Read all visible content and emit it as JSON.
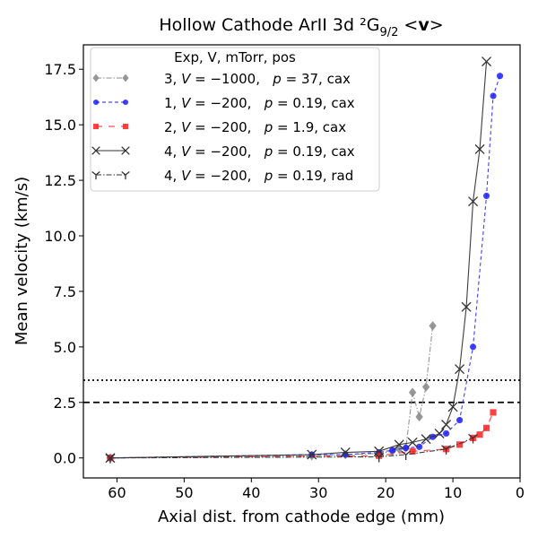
{
  "chart_data": {
    "type": "line",
    "title": "Hollow Cathode ArII 3d ²G",
    "title_subscript": "9/2",
    "title_suffix": " <",
    "title_bold": "v",
    "title_end": ">",
    "xlabel": "Axial dist. from cathode edge (mm)",
    "ylabel": "Mean velocity (km/s)",
    "xlim": [
      65,
      0
    ],
    "ylim": [
      -0.9,
      18.6
    ],
    "x_ticks": [
      60,
      50,
      40,
      30,
      20,
      10,
      0
    ],
    "x_tick_labels": [
      "60",
      "50",
      "40",
      "30",
      "20",
      "10",
      "0"
    ],
    "y_ticks": [
      0.0,
      2.5,
      5.0,
      7.5,
      10.0,
      12.5,
      15.0,
      17.5
    ],
    "y_tick_labels": [
      "0.0",
      "2.5",
      "5.0",
      "7.5",
      "10.0",
      "12.5",
      "15.0",
      "17.5"
    ],
    "grid": false,
    "hlines": [
      {
        "y": 3.5,
        "style": "dotted",
        "color": "#000000"
      },
      {
        "y": 2.5,
        "style": "dashed",
        "color": "#000000"
      }
    ],
    "legend": {
      "placement": "top-left",
      "title": "Exp, V, mTorr, pos",
      "entries": [
        {
          "exp": "3",
          "v": "−1000,",
          "p": "37,",
          "pos": "cax"
        },
        {
          "exp": "1",
          "v": "−200,",
          "p": "0.19,",
          "pos": "cax"
        },
        {
          "exp": "2",
          "v": "−200,",
          "p": "1.9,",
          "pos": "cax"
        },
        {
          "exp": "4",
          "v": "−200,",
          "p": "0.19,",
          "pos": "cax"
        },
        {
          "exp": "4",
          "v": "−200,",
          "p": "0.19,",
          "pos": "rad"
        }
      ]
    },
    "series": [
      {
        "color": "#8c8c8c",
        "marker": "diamond",
        "line": "dashdot",
        "alpha": 0.9,
        "x": [
          61,
          31,
          26,
          21,
          19,
          18,
          17,
          16,
          15,
          14,
          13
        ],
        "y": [
          0.0,
          0.1,
          0.15,
          0.2,
          0.3,
          0.4,
          0.45,
          2.95,
          1.85,
          3.2,
          5.95
        ]
      },
      {
        "color": "#1f1fff",
        "marker": "circle",
        "line": "dashed",
        "alpha": 0.85,
        "x": [
          61,
          31,
          26,
          21,
          19,
          17,
          15,
          13,
          11,
          9,
          7,
          5,
          4,
          3
        ],
        "y": [
          0.0,
          0.15,
          0.15,
          0.25,
          0.35,
          0.45,
          0.5,
          0.95,
          1.1,
          1.7,
          5.0,
          11.8,
          16.3,
          17.2
        ]
      },
      {
        "color": "#ff2020",
        "marker": "square",
        "line": "longdash",
        "alpha": 0.85,
        "x": [
          61,
          21,
          16,
          11,
          9,
          7,
          6,
          5,
          4
        ],
        "y": [
          0.0,
          0.1,
          0.3,
          0.4,
          0.6,
          0.9,
          1.05,
          1.35,
          2.05
        ]
      },
      {
        "color": "#333333",
        "marker": "x",
        "line": "solid",
        "alpha": 0.95,
        "x": [
          61,
          31,
          26,
          21,
          18,
          16,
          14,
          12,
          11,
          10,
          9,
          8,
          7,
          6,
          5
        ],
        "y": [
          0.0,
          0.15,
          0.25,
          0.3,
          0.6,
          0.7,
          0.85,
          1.1,
          1.5,
          2.3,
          4.0,
          6.8,
          11.55,
          13.9,
          17.85
        ]
      },
      {
        "color": "#333333",
        "marker": "tri_down",
        "line": "dashdot",
        "alpha": 0.95,
        "x": [
          61,
          21,
          17,
          11,
          7
        ],
        "y": [
          0.0,
          0.05,
          0.15,
          0.4,
          0.9
        ]
      }
    ]
  }
}
